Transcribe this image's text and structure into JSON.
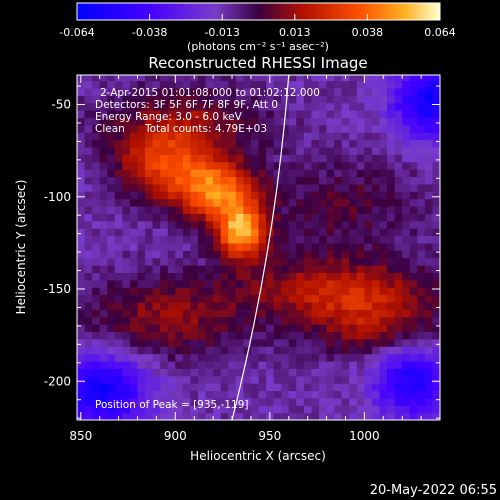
{
  "chart_data": {
    "type": "heatmap",
    "title": "Reconstructed RHESSI Image",
    "xlabel": "Heliocentric X (arcsec)",
    "ylabel": "Heliocentric Y (arcsec)",
    "xlim": [
      848,
      1040
    ],
    "ylim": [
      -221,
      -34
    ],
    "x_ticks": [
      850,
      900,
      950,
      1000
    ],
    "y_ticks": [
      -50,
      -100,
      -150,
      -200
    ],
    "colorbar": {
      "range": [
        -0.064,
        0.064
      ],
      "ticks": [
        "-0.064",
        "-0.038",
        "-0.013",
        "0.013",
        "0.038",
        "0.064"
      ],
      "unit_label": "(photons cm⁻² s⁻¹ asec⁻²)"
    },
    "annotations": {
      "time_range": "2-Apr-2015 01:01:08.000 to 01:02:12.000",
      "detectors": "Detectors: 3F 5F 6F 7F 8F 9F, Att 0",
      "energy": "Energy Range: 3.0 - 6.0 keV",
      "method": "Clean",
      "total_counts": "Total counts: 4.79E+03",
      "peak": "Position of Peak = [935,-119]"
    },
    "peak_position": [
      935,
      -119
    ],
    "sources": [
      {
        "x": 935,
        "y": -119,
        "amplitude": 0.062,
        "sigma_x": 9,
        "sigma_y": 10
      },
      {
        "x": 922,
        "y": -97,
        "amplitude": 0.05,
        "sigma_x": 15,
        "sigma_y": 11
      },
      {
        "x": 895,
        "y": -83,
        "amplitude": 0.036,
        "sigma_x": 18,
        "sigma_y": 13
      },
      {
        "x": 905,
        "y": -60,
        "amplitude": 0.022,
        "sigma_x": 30,
        "sigma_y": 14
      },
      {
        "x": 985,
        "y": -150,
        "amplitude": 0.03,
        "sigma_x": 35,
        "sigma_y": 12
      },
      {
        "x": 1005,
        "y": -170,
        "amplitude": 0.022,
        "sigma_x": 25,
        "sigma_y": 12
      },
      {
        "x": 895,
        "y": -165,
        "amplitude": 0.022,
        "sigma_x": 30,
        "sigma_y": 16
      },
      {
        "x": 990,
        "y": -105,
        "amplitude": 0.014,
        "sigma_x": 30,
        "sigma_y": 18
      },
      {
        "x": 1035,
        "y": -48,
        "amplitude": -0.045,
        "sigma_x": 14,
        "sigma_y": 14
      },
      {
        "x": 862,
        "y": -205,
        "amplitude": -0.045,
        "sigma_x": 16,
        "sigma_y": 14
      },
      {
        "x": 1025,
        "y": -200,
        "amplitude": -0.04,
        "sigma_x": 14,
        "sigma_y": 14
      }
    ],
    "background": -0.012,
    "limb_curve": [
      [
        960,
        -34
      ],
      [
        955,
        -100
      ],
      [
        945,
        -160
      ],
      [
        930,
        -221
      ]
    ]
  },
  "footer": {
    "date": "20-May-2022 06:55"
  }
}
